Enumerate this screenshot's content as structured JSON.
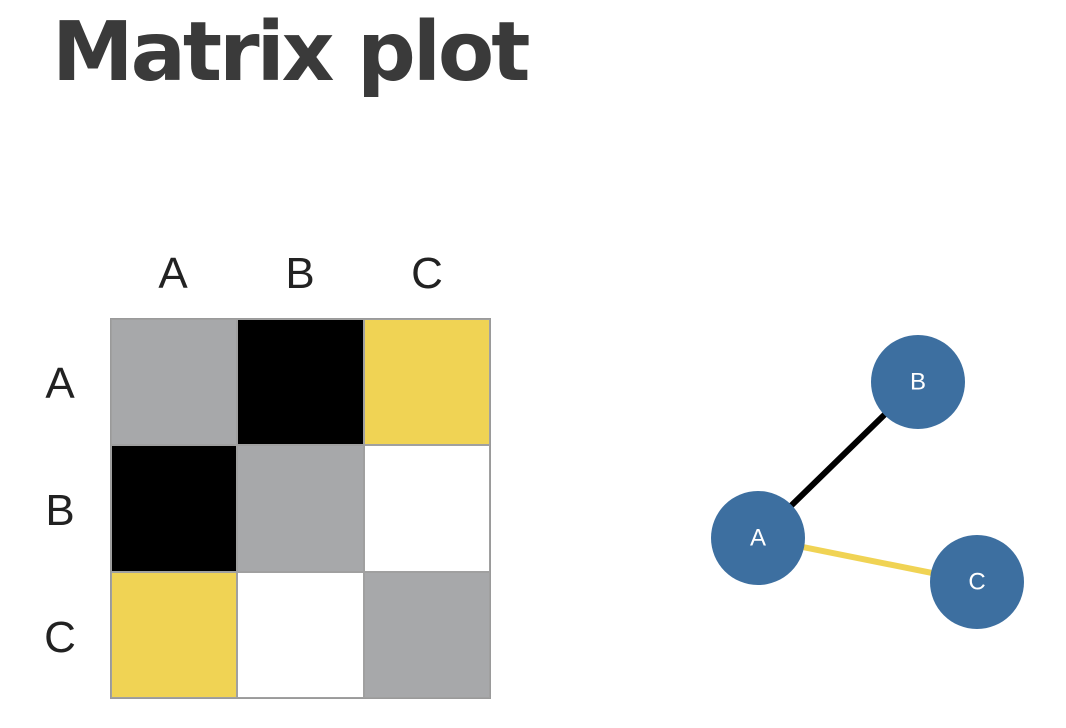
{
  "title": "Matrix plot",
  "matrix": {
    "col_labels": [
      "A",
      "B",
      "C"
    ],
    "row_labels": [
      "A",
      "B",
      "C"
    ],
    "cells": [
      [
        "gray",
        "black",
        "yellow"
      ],
      [
        "black",
        "gray",
        "white"
      ],
      [
        "yellow",
        "white",
        "gray"
      ]
    ]
  },
  "colors": {
    "gray": "#a7a8aa",
    "black": "#000000",
    "yellow": "#f0d354",
    "white": "#ffffff",
    "node": "#3d6fa0",
    "title": "#3a3a3a"
  },
  "network": {
    "nodes": [
      {
        "id": "A",
        "label": "A"
      },
      {
        "id": "B",
        "label": "B"
      },
      {
        "id": "C",
        "label": "C"
      }
    ],
    "edges": [
      {
        "source": "A",
        "target": "B",
        "color": "black"
      },
      {
        "source": "A",
        "target": "C",
        "color": "yellow"
      }
    ]
  }
}
